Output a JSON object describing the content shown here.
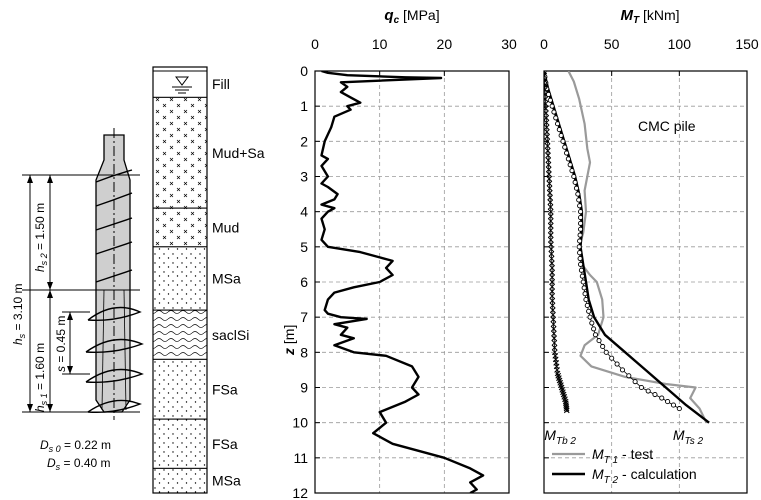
{
  "pile_drawing": {
    "dims": [
      {
        "id": "hs",
        "sym": "h",
        "sub": "s",
        "value": " = 3.10 m"
      },
      {
        "id": "hs2",
        "sym": "h",
        "sub": "s 2",
        "value": " = 1.50 m"
      },
      {
        "id": "hs1",
        "sym": "h",
        "sub": "s 1",
        "value": " = 1.60 m"
      },
      {
        "id": "s",
        "sym": "s",
        "sub": "",
        "value": " = 0.45 m"
      }
    ],
    "diameters": [
      {
        "sym": "D",
        "sub": "s 0",
        "value": " = 0.22 m"
      },
      {
        "sym": "D",
        "sub": "s",
        "value": " = 0.40 m"
      }
    ]
  },
  "soil_layers": [
    {
      "label": "Fill",
      "top": 0,
      "bottom": 0.75,
      "pattern": "fill"
    },
    {
      "label": "Mud+Sa",
      "top": 0.75,
      "bottom": 3.9,
      "pattern": "cross"
    },
    {
      "label": "Mud",
      "top": 3.9,
      "bottom": 5.0,
      "pattern": "cross"
    },
    {
      "label": "MSa",
      "top": 5.0,
      "bottom": 6.8,
      "pattern": "dots"
    },
    {
      "label": "saclSi",
      "top": 6.8,
      "bottom": 8.2,
      "pattern": "wave"
    },
    {
      "label": "FSa",
      "top": 8.2,
      "bottom": 9.9,
      "pattern": "dots"
    },
    {
      "label": "FSa",
      "top": 9.9,
      "bottom": 11.3,
      "pattern": "dots"
    },
    {
      "label": "MSa",
      "top": 11.3,
      "bottom": 12,
      "pattern": "dots"
    }
  ],
  "chart_data": [
    {
      "type": "line",
      "title_sym": "q",
      "title_sub": "c",
      "title_unit": " [MPa]",
      "ylabel": "z",
      "ylabel_unit": " [m]",
      "xlim": [
        0,
        30
      ],
      "ylim": [
        0,
        12
      ],
      "xticks": [
        0,
        10,
        20,
        30
      ],
      "yticks": [
        0,
        1,
        2,
        3,
        4,
        5,
        6,
        7,
        8,
        9,
        10,
        11,
        12
      ],
      "grid": true,
      "series": [
        {
          "color": "#000000",
          "points": [
            [
              1,
              0
            ],
            [
              2,
              0.05
            ],
            [
              5,
              0.12
            ],
            [
              14,
              0.18
            ],
            [
              19.5,
              0.2
            ],
            [
              4,
              0.32
            ],
            [
              5,
              0.45
            ],
            [
              4,
              0.6
            ],
            [
              5.5,
              0.75
            ],
            [
              7,
              0.9
            ],
            [
              5,
              1.0
            ],
            [
              5.5,
              1.1
            ],
            [
              3,
              1.3
            ],
            [
              2.5,
              1.6
            ],
            [
              1.5,
              2.0
            ],
            [
              1,
              2.4
            ],
            [
              2,
              2.5
            ],
            [
              1,
              2.7
            ],
            [
              2,
              3.0
            ],
            [
              1,
              3.2
            ],
            [
              2,
              3.3
            ],
            [
              3.5,
              3.5
            ],
            [
              3,
              3.65
            ],
            [
              1,
              3.8
            ],
            [
              3,
              3.9
            ],
            [
              2,
              4.0
            ],
            [
              1,
              4.2
            ],
            [
              1.5,
              4.5
            ],
            [
              1,
              4.8
            ],
            [
              2,
              5.0
            ],
            [
              7,
              5.15
            ],
            [
              10,
              5.3
            ],
            [
              12,
              5.4
            ],
            [
              11,
              5.6
            ],
            [
              12,
              5.8
            ],
            [
              10,
              6.0
            ],
            [
              6,
              6.15
            ],
            [
              3,
              6.3
            ],
            [
              2,
              6.5
            ],
            [
              1.5,
              6.8
            ],
            [
              2,
              6.9
            ],
            [
              4,
              7.0
            ],
            [
              8,
              7.05
            ],
            [
              3,
              7.2
            ],
            [
              5,
              7.3
            ],
            [
              4,
              7.5
            ],
            [
              6,
              7.6
            ],
            [
              3,
              7.8
            ],
            [
              6,
              8.0
            ],
            [
              11,
              8.1
            ],
            [
              15,
              8.4
            ],
            [
              16,
              8.7
            ],
            [
              15,
              9.0
            ],
            [
              16,
              9.2
            ],
            [
              14,
              9.4
            ],
            [
              10,
              9.7
            ],
            [
              11,
              10.0
            ],
            [
              9,
              10.3
            ],
            [
              12,
              10.6
            ],
            [
              16,
              10.8
            ],
            [
              20,
              11.0
            ],
            [
              24,
              11.3
            ],
            [
              26,
              11.5
            ],
            [
              24,
              11.7
            ],
            [
              25,
              11.9
            ],
            [
              24,
              12.0
            ]
          ]
        }
      ]
    },
    {
      "type": "line",
      "title_sym": "M",
      "title_sub": "T",
      "title_unit": " [kNm]",
      "xlim": [
        0,
        150
      ],
      "ylim": [
        0,
        12
      ],
      "xticks": [
        0,
        50,
        100,
        150
      ],
      "yticks": [
        0,
        1,
        2,
        3,
        4,
        5,
        6,
        7,
        8,
        9,
        10,
        11,
        12
      ],
      "grid": true,
      "annotation": "CMC pile",
      "labels": [
        {
          "sym": "M",
          "sub": "Tb 2",
          "x": 15,
          "y": 10.35
        },
        {
          "sym": "M",
          "sub": "Ts 2",
          "x": 110,
          "y": 10.35
        }
      ],
      "series": [
        {
          "name_sym": "M",
          "name_sub": "T 1",
          "name_rest": " - test",
          "color": "#9a9a9a",
          "width": 2.2,
          "style": "solid",
          "points": [
            [
              18,
              0
            ],
            [
              22,
              0.3
            ],
            [
              26,
              0.8
            ],
            [
              30,
              1.5
            ],
            [
              32,
              2.2
            ],
            [
              34,
              2.6
            ],
            [
              32,
              3.0
            ],
            [
              30,
              3.4
            ],
            [
              31,
              4.0
            ],
            [
              29,
              4.6
            ],
            [
              26,
              5.0
            ],
            [
              28,
              5.5
            ],
            [
              34,
              5.8
            ],
            [
              39,
              6.0
            ],
            [
              43,
              6.5
            ],
            [
              44,
              7.0
            ],
            [
              40,
              7.5
            ],
            [
              30,
              7.8
            ],
            [
              27,
              8.1
            ],
            [
              35,
              8.4
            ],
            [
              60,
              8.7
            ],
            [
              90,
              8.9
            ],
            [
              112,
              9.0
            ],
            [
              108,
              9.3
            ],
            [
              115,
              9.6
            ],
            [
              120,
              10.0
            ]
          ]
        },
        {
          "name_sym": "M",
          "name_sub": "T 2",
          "name_rest": " - calculation",
          "color": "#000000",
          "width": 2.4,
          "style": "solid",
          "points": [
            [
              0,
              0
            ],
            [
              3,
              0.5
            ],
            [
              7,
              1.0
            ],
            [
              11,
              1.5
            ],
            [
              15,
              2.0
            ],
            [
              19,
              2.5
            ],
            [
              23,
              3.0
            ],
            [
              26,
              3.5
            ],
            [
              28,
              4.0
            ],
            [
              28,
              4.5
            ],
            [
              27,
              5.0
            ],
            [
              29,
              5.5
            ],
            [
              31,
              6.0
            ],
            [
              33,
              6.5
            ],
            [
              37,
              7.0
            ],
            [
              45,
              7.5
            ],
            [
              60,
              8.0
            ],
            [
              75,
              8.5
            ],
            [
              90,
              9.0
            ],
            [
              105,
              9.5
            ],
            [
              122,
              10.0
            ]
          ]
        },
        {
          "color": "#000000",
          "width": 1.2,
          "style": "circles",
          "points": [
            [
              0,
              0
            ],
            [
              2,
              0.5
            ],
            [
              6,
              1.0
            ],
            [
              10,
              1.5
            ],
            [
              14,
              2.0
            ],
            [
              18,
              2.5
            ],
            [
              22,
              3.0
            ],
            [
              25,
              3.5
            ],
            [
              27,
              4.0
            ],
            [
              27,
              4.5
            ],
            [
              26,
              5.0
            ],
            [
              27,
              5.5
            ],
            [
              29,
              6.0
            ],
            [
              31,
              6.5
            ],
            [
              34,
              7.0
            ],
            [
              38,
              7.5
            ],
            [
              46,
              8.0
            ],
            [
              58,
              8.5
            ],
            [
              72,
              9.0
            ],
            [
              87,
              9.3
            ],
            [
              100,
              9.6
            ]
          ]
        },
        {
          "color": "#000000",
          "width": 1.2,
          "style": "cross",
          "points": [
            [
              0,
              0
            ],
            [
              1,
              0.8
            ],
            [
              2,
              1.6
            ],
            [
              3,
              2.4
            ],
            [
              4,
              3.2
            ],
            [
              5,
              4.0
            ],
            [
              5,
              4.8
            ],
            [
              6,
              5.6
            ],
            [
              6,
              6.4
            ],
            [
              7,
              7.2
            ],
            [
              8,
              8.0
            ],
            [
              10,
              8.6
            ],
            [
              13,
              9.0
            ],
            [
              16,
              9.4
            ],
            [
              17,
              9.7
            ]
          ]
        }
      ]
    }
  ]
}
